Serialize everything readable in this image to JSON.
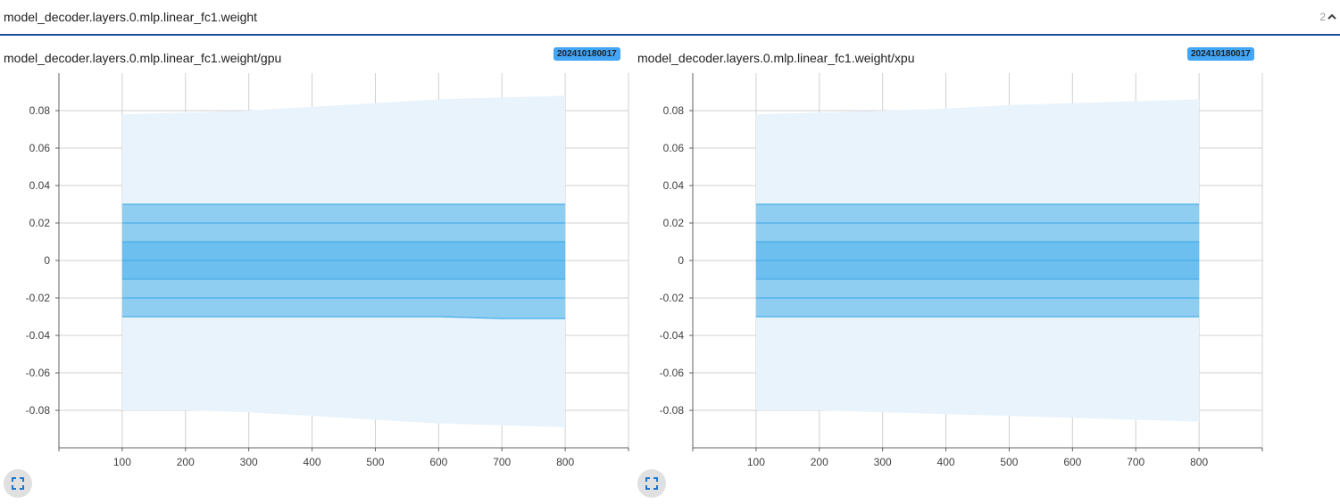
{
  "group": {
    "title": "model_decoder.layers.0.mlp.linear_fc1.weight",
    "count": "2",
    "collapse_icon": "chevron-up-icon"
  },
  "cards": [
    {
      "title": "model_decoder.layers.0.mlp.linear_fc1.weight/gpu",
      "run": "202410180017",
      "expand_icon": "fullscreen-icon"
    },
    {
      "title": "model_decoder.layers.0.mlp.linear_fc1.weight/xpu",
      "run": "202410180017",
      "expand_icon": "fullscreen-icon"
    }
  ],
  "colors": {
    "band_outer": "#e8f3fc",
    "band_mid": "#8fcdf1",
    "band_inner": "#6cbfee",
    "line": "#4aaee6",
    "badge": "#42a5f5",
    "header_border": "#1f4e98"
  },
  "chart_data": [
    {
      "type": "area",
      "xlim": [
        0,
        900
      ],
      "ylim": [
        -0.1,
        0.1
      ],
      "x_ticks": [
        100,
        200,
        300,
        400,
        500,
        600,
        700,
        800
      ],
      "y_ticks": [
        0.08,
        0.06,
        0.04,
        0.02,
        0,
        -0.02,
        -0.04,
        -0.06,
        -0.08
      ],
      "x_tick_labels": [
        "100",
        "200",
        "300",
        "400",
        "500",
        "600",
        "700",
        "800"
      ],
      "y_tick_labels": [
        "0.08",
        "0.06",
        "0.04",
        "0.02",
        "0",
        "-0.02",
        "-0.04",
        "-0.06",
        "-0.08"
      ],
      "grid": true,
      "x": [
        100,
        200,
        300,
        400,
        500,
        600,
        700,
        800
      ],
      "max": [
        0.078,
        0.079,
        0.08,
        0.082,
        0.084,
        0.086,
        0.087,
        0.088
      ],
      "p93": [
        0.03,
        0.03,
        0.03,
        0.03,
        0.03,
        0.03,
        0.03,
        0.03
      ],
      "p84": [
        0.02,
        0.02,
        0.02,
        0.02,
        0.02,
        0.02,
        0.02,
        0.02
      ],
      "p69": [
        0.01,
        0.01,
        0.01,
        0.01,
        0.01,
        0.01,
        0.01,
        0.01
      ],
      "median": [
        0,
        0,
        0,
        0,
        0,
        0,
        0,
        0
      ],
      "p31": [
        -0.01,
        -0.01,
        -0.01,
        -0.01,
        -0.01,
        -0.01,
        -0.01,
        -0.01
      ],
      "p16": [
        -0.02,
        -0.02,
        -0.02,
        -0.02,
        -0.02,
        -0.02,
        -0.02,
        -0.02
      ],
      "p7": [
        -0.03,
        -0.03,
        -0.03,
        -0.03,
        -0.03,
        -0.03,
        -0.031,
        -0.031
      ],
      "min": [
        -0.08,
        -0.08,
        -0.081,
        -0.083,
        -0.085,
        -0.087,
        -0.088,
        -0.089
      ]
    },
    {
      "type": "area",
      "xlim": [
        0,
        900
      ],
      "ylim": [
        -0.1,
        0.1
      ],
      "x_ticks": [
        100,
        200,
        300,
        400,
        500,
        600,
        700,
        800
      ],
      "y_ticks": [
        0.08,
        0.06,
        0.04,
        0.02,
        0,
        -0.02,
        -0.04,
        -0.06,
        -0.08
      ],
      "x_tick_labels": [
        "100",
        "200",
        "300",
        "400",
        "500",
        "600",
        "700",
        "800"
      ],
      "y_tick_labels": [
        "0.08",
        "0.06",
        "0.04",
        "0.02",
        "0",
        "-0.02",
        "-0.04",
        "-0.06",
        "-0.08"
      ],
      "grid": true,
      "x": [
        100,
        200,
        300,
        400,
        500,
        600,
        700,
        800
      ],
      "max": [
        0.078,
        0.079,
        0.08,
        0.081,
        0.083,
        0.084,
        0.085,
        0.086
      ],
      "p93": [
        0.03,
        0.03,
        0.03,
        0.03,
        0.03,
        0.03,
        0.03,
        0.03
      ],
      "p84": [
        0.02,
        0.02,
        0.02,
        0.02,
        0.02,
        0.02,
        0.02,
        0.02
      ],
      "p69": [
        0.01,
        0.01,
        0.01,
        0.01,
        0.01,
        0.01,
        0.01,
        0.01
      ],
      "median": [
        0,
        0,
        0,
        0,
        0,
        0,
        0,
        0
      ],
      "p31": [
        -0.01,
        -0.01,
        -0.01,
        -0.01,
        -0.01,
        -0.01,
        -0.01,
        -0.01
      ],
      "p16": [
        -0.02,
        -0.02,
        -0.02,
        -0.02,
        -0.02,
        -0.02,
        -0.02,
        -0.02
      ],
      "p7": [
        -0.03,
        -0.03,
        -0.03,
        -0.03,
        -0.03,
        -0.03,
        -0.03,
        -0.03
      ],
      "min": [
        -0.08,
        -0.08,
        -0.081,
        -0.082,
        -0.083,
        -0.084,
        -0.085,
        -0.086
      ]
    }
  ]
}
